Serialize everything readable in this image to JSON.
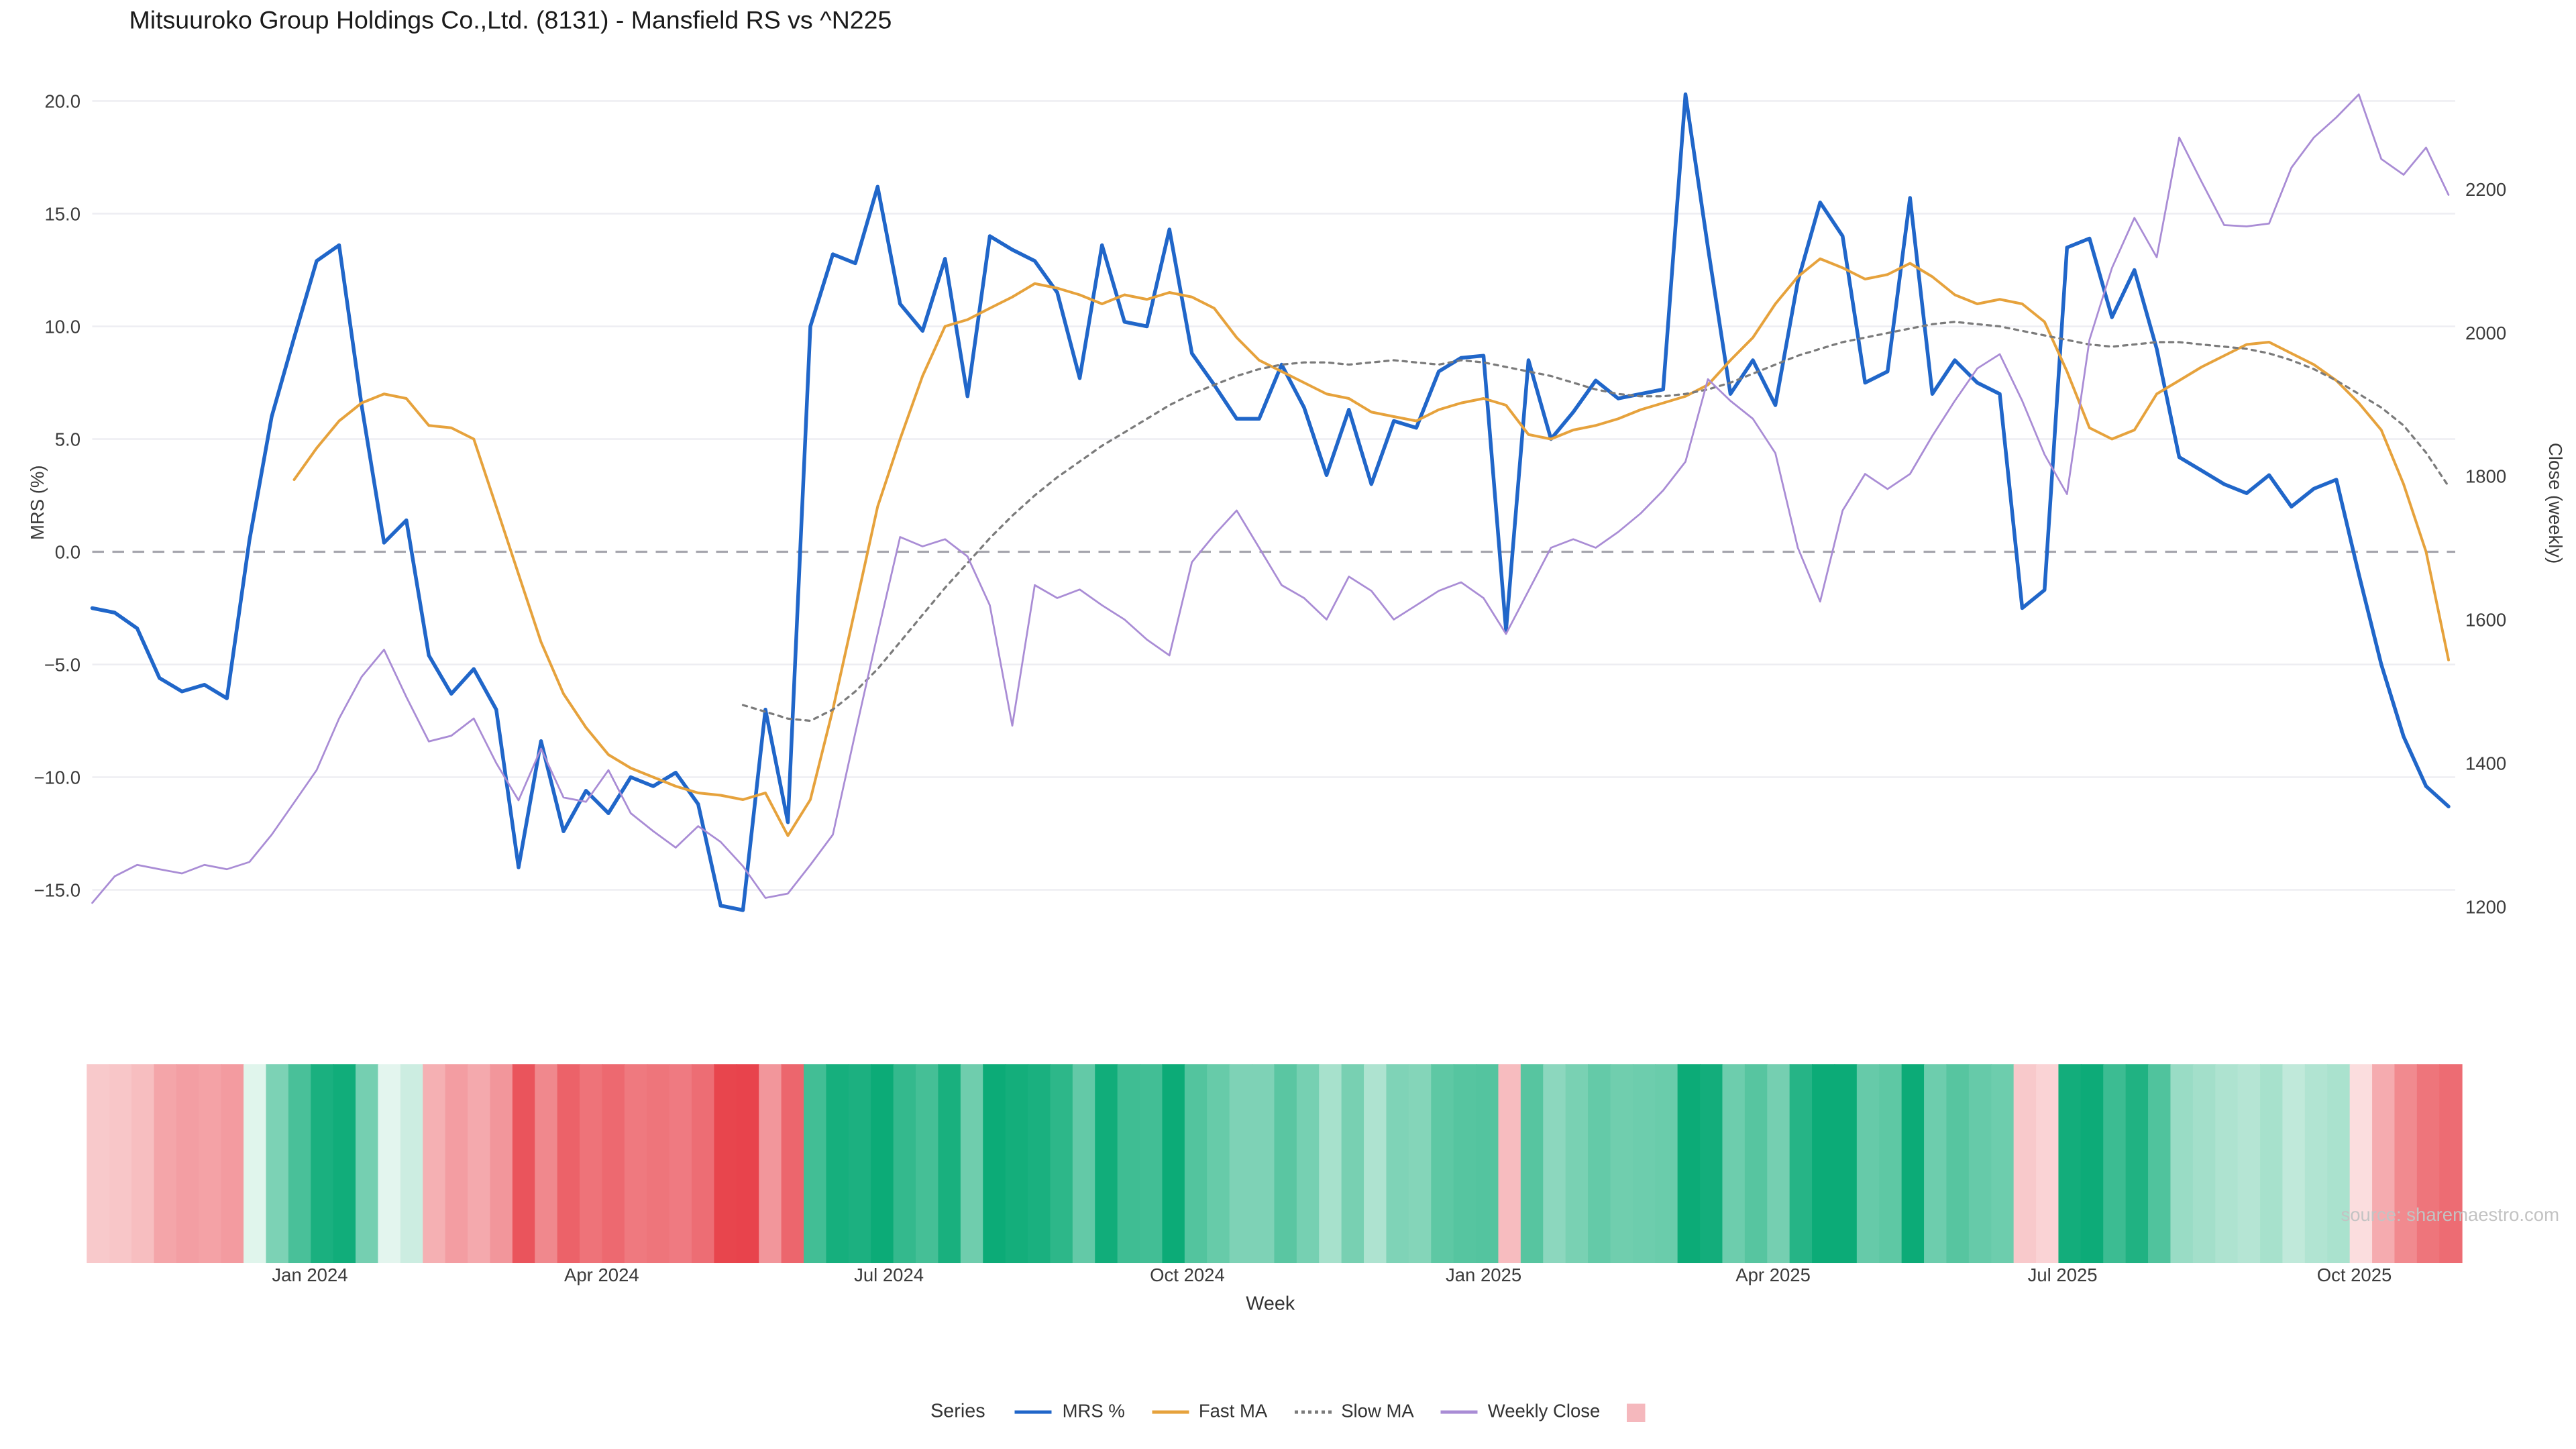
{
  "title": "Mitsuuroko Group Holdings Co.,Ltd. (8131) - Mansfield RS vs ^N225",
  "source": "source: sharemaestro.com",
  "axes": {
    "left_label": "MRS (%)",
    "right_label": "Close (weekly)",
    "x_label": "Week",
    "left_ticks": [
      "20.0",
      "15.0",
      "10.0",
      "5.0",
      "0.0",
      "−5.0",
      "−10.0",
      "−15.0"
    ],
    "left_tick_values": [
      20,
      15,
      10,
      5,
      0,
      -5,
      -10,
      -15
    ],
    "right_ticks": [
      "2200",
      "2000",
      "1800",
      "1600",
      "1400",
      "1200"
    ],
    "right_tick_values": [
      2200,
      2000,
      1800,
      1600,
      1400,
      1200
    ],
    "x_ticks": [
      "Jan 2024",
      "Apr 2024",
      "Jul 2024",
      "Oct 2024",
      "Jan 2025",
      "Apr 2025",
      "Jul 2025",
      "Oct 2025"
    ],
    "x_tick_weeks": [
      9.7,
      22.7,
      35.5,
      48.8,
      62.0,
      74.9,
      87.8,
      100.8
    ]
  },
  "legend": {
    "title": "Series",
    "entries": [
      {
        "label": "MRS %"
      },
      {
        "label": "Fast MA"
      },
      {
        "label": "Slow MA"
      },
      {
        "label": "Weekly Close"
      },
      {
        "label": ""
      }
    ]
  },
  "colors": {
    "mrs": "#2066c9",
    "fast_ma": "#e6a23c",
    "slow_ma": "#7b7b7b",
    "weekly_close": "#a98cd5",
    "zero_line": "#a5a5ad",
    "grid": "#ededf2",
    "heat_pos": "#0cab77",
    "heat_neg": "#e8424b",
    "heat_pos_light": "#f0faf5",
    "heat_neg_light": "#fdf0f0",
    "heat_legend": "#f5b8bd"
  },
  "chart_data": {
    "type": "line",
    "x_unit": "week",
    "n_weeks": 106,
    "left_axis_range": [
      -17.5,
      21
    ],
    "right_axis_range": [
      1150,
      2350
    ],
    "zero_line": 0,
    "heatmap_note": "weekly color strip derived from MRS % sign and magnitude (green positive, red negative)",
    "series": [
      {
        "name": "MRS %",
        "slug": "mrs",
        "axis": "left",
        "color": "#2066c9",
        "style": "solid",
        "width": 2.2,
        "values": [
          -2.5,
          -2.7,
          -3.4,
          -5.6,
          -6.2,
          -5.9,
          -6.5,
          0.5,
          6.0,
          9.5,
          12.9,
          13.6,
          6.5,
          0.4,
          1.4,
          -4.6,
          -6.3,
          -5.2,
          -7.0,
          -14.0,
          -8.4,
          -12.4,
          -10.6,
          -11.6,
          -10.0,
          -10.4,
          -9.8,
          -11.2,
          -15.7,
          -15.9,
          -7.0,
          -12.0,
          10.0,
          13.2,
          12.8,
          16.2,
          11.0,
          9.8,
          13.0,
          6.9,
          14.0,
          13.4,
          12.9,
          11.5,
          7.7,
          13.6,
          10.2,
          10.0,
          14.3,
          8.8,
          7.4,
          5.9,
          5.9,
          8.3,
          6.4,
          3.4,
          6.3,
          3.0,
          5.8,
          5.5,
          8.0,
          8.6,
          8.7,
          -3.5,
          8.5,
          5.0,
          6.2,
          7.6,
          6.8,
          7.0,
          7.2,
          20.3,
          13.5,
          7.0,
          8.5,
          6.5,
          12.0,
          15.5,
          14.0,
          7.5,
          8.0,
          15.7,
          7.0,
          8.5,
          7.5,
          7.0,
          -2.5,
          -1.7,
          13.5,
          13.9,
          10.4,
          12.5,
          9.0,
          4.2,
          3.6,
          3.0,
          2.6,
          3.4,
          2.0,
          2.8,
          3.2,
          -1.0,
          -5.0,
          -8.2,
          -10.4,
          -11.3
        ]
      },
      {
        "name": "Fast MA",
        "slug": "fast-ma",
        "axis": "left",
        "color": "#e6a23c",
        "style": "solid",
        "width": 1.6,
        "values": [
          null,
          null,
          null,
          null,
          null,
          null,
          null,
          null,
          null,
          3.2,
          4.6,
          5.8,
          6.6,
          7.0,
          6.8,
          5.6,
          5.5,
          5.0,
          2.0,
          -1.0,
          -4.0,
          -6.3,
          -7.8,
          -9.0,
          -9.6,
          -10.0,
          -10.4,
          -10.7,
          -10.8,
          -11.0,
          -10.7,
          -12.6,
          -11.0,
          -7.0,
          -2.5,
          2.0,
          5.0,
          7.8,
          10.0,
          10.3,
          10.8,
          11.3,
          11.9,
          11.7,
          11.4,
          11.0,
          11.4,
          11.2,
          11.5,
          11.3,
          10.8,
          9.5,
          8.5,
          8.0,
          7.5,
          7.0,
          6.8,
          6.2,
          6.0,
          5.8,
          6.3,
          6.6,
          6.8,
          6.5,
          5.2,
          5.0,
          5.4,
          5.6,
          5.9,
          6.3,
          6.6,
          6.9,
          7.4,
          8.5,
          9.5,
          11.0,
          12.2,
          13.0,
          12.6,
          12.1,
          12.3,
          12.8,
          12.2,
          11.4,
          11.0,
          11.2,
          11.0,
          10.2,
          8.0,
          5.5,
          5.0,
          5.4,
          7.0,
          7.6,
          8.2,
          8.7,
          9.2,
          9.3,
          8.8,
          8.3,
          7.6,
          6.6,
          5.4,
          3.0,
          0.0,
          -4.8
        ]
      },
      {
        "name": "Slow MA",
        "slug": "slow-ma",
        "axis": "left",
        "color": "#7b7b7b",
        "style": "dotted",
        "width": 1.3,
        "values": [
          null,
          null,
          null,
          null,
          null,
          null,
          null,
          null,
          null,
          null,
          null,
          null,
          null,
          null,
          null,
          null,
          null,
          null,
          null,
          null,
          null,
          null,
          null,
          null,
          null,
          null,
          null,
          null,
          null,
          -6.8,
          -7.1,
          -7.4,
          -7.5,
          -7.0,
          -6.2,
          -5.2,
          -4.0,
          -2.8,
          -1.6,
          -0.5,
          0.6,
          1.6,
          2.5,
          3.3,
          4.0,
          4.7,
          5.3,
          5.9,
          6.5,
          7.0,
          7.4,
          7.8,
          8.1,
          8.3,
          8.4,
          8.4,
          8.3,
          8.4,
          8.5,
          8.4,
          8.3,
          8.5,
          8.4,
          8.2,
          8.0,
          7.8,
          7.5,
          7.2,
          7.0,
          6.9,
          6.9,
          7.0,
          7.2,
          7.5,
          7.9,
          8.3,
          8.7,
          9.0,
          9.3,
          9.5,
          9.7,
          9.9,
          10.1,
          10.2,
          10.1,
          10.0,
          9.8,
          9.6,
          9.4,
          9.2,
          9.1,
          9.2,
          9.3,
          9.3,
          9.2,
          9.1,
          9.0,
          8.8,
          8.5,
          8.1,
          7.6,
          7.0,
          6.4,
          5.6,
          4.4,
          2.9
        ]
      },
      {
        "name": "Weekly Close",
        "slug": "weekly-close",
        "axis": "right",
        "color": "#a98cd5",
        "style": "solid",
        "width": 1.1,
        "values": [
          1205,
          1242,
          1258,
          1252,
          1246,
          1258,
          1252,
          1262,
          1300,
          1345,
          1390,
          1462,
          1520,
          1558,
          1492,
          1430,
          1438,
          1462,
          1400,
          1348,
          1420,
          1352,
          1346,
          1390,
          1330,
          1305,
          1282,
          1312,
          1290,
          1256,
          1212,
          1218,
          1258,
          1300,
          1442,
          1580,
          1715,
          1702,
          1712,
          1688,
          1620,
          1452,
          1648,
          1630,
          1642,
          1620,
          1600,
          1572,
          1550,
          1680,
          1718,
          1752,
          1700,
          1648,
          1630,
          1600,
          1660,
          1640,
          1600,
          1620,
          1640,
          1652,
          1630,
          1580,
          1640,
          1700,
          1712,
          1700,
          1722,
          1748,
          1780,
          1820,
          1935,
          1905,
          1880,
          1832,
          1700,
          1625,
          1752,
          1803,
          1782,
          1803,
          1856,
          1905,
          1950,
          1970,
          1905,
          1830,
          1775,
          1990,
          2090,
          2160,
          2105,
          2272,
          2210,
          2150,
          2148,
          2152,
          2230,
          2272,
          2300,
          2332,
          2242,
          2220,
          2258,
          2192
        ]
      }
    ]
  }
}
